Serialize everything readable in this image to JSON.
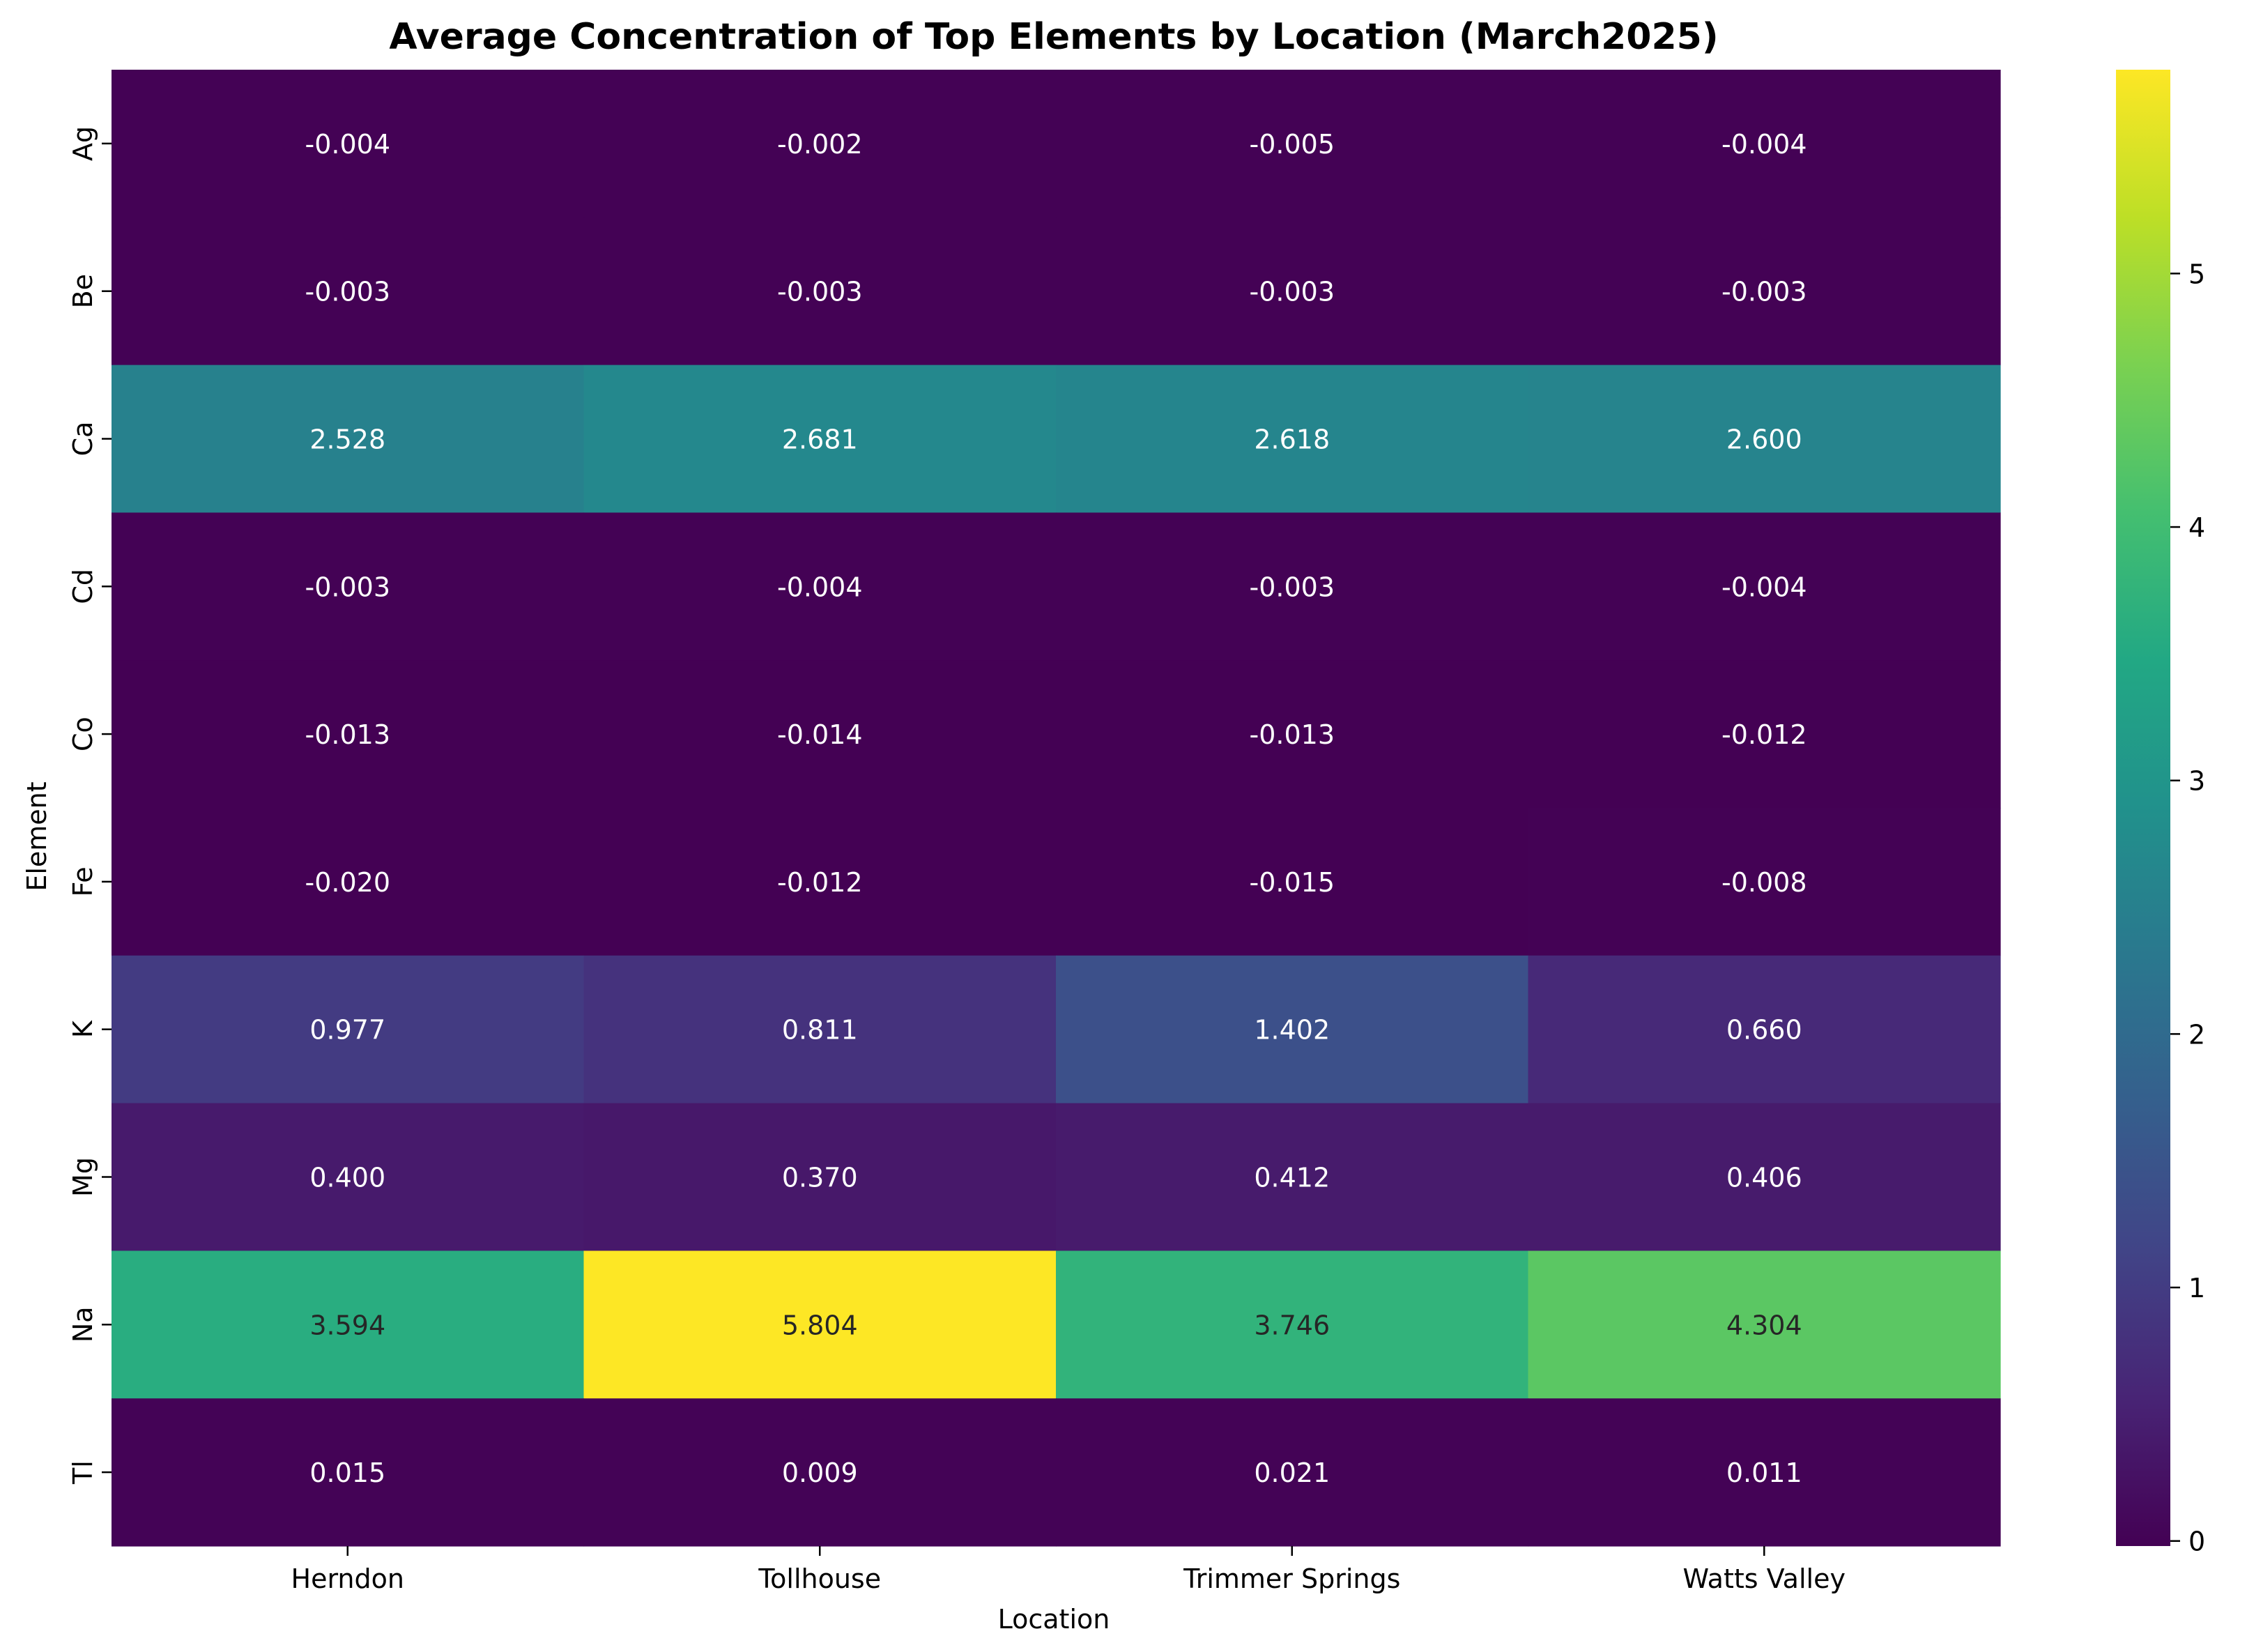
{
  "chart_data": {
    "type": "heatmap",
    "title": "Average Concentration of Top Elements by Location (March2025)",
    "xlabel": "Location",
    "ylabel": "Element",
    "x_categories": [
      "Herndon",
      "Tollhouse",
      "Trimmer Springs",
      "Watts Valley"
    ],
    "y_categories": [
      "Ag",
      "Be",
      "Ca",
      "Cd",
      "Co",
      "Fe",
      "K",
      "Mg",
      "Na",
      "Tl"
    ],
    "values": [
      [
        -0.004,
        -0.002,
        -0.005,
        -0.004
      ],
      [
        -0.003,
        -0.003,
        -0.003,
        -0.003
      ],
      [
        2.528,
        2.681,
        2.618,
        2.6
      ],
      [
        -0.003,
        -0.004,
        -0.003,
        -0.004
      ],
      [
        -0.013,
        -0.014,
        -0.013,
        -0.012
      ],
      [
        -0.02,
        -0.012,
        -0.015,
        -0.008
      ],
      [
        0.977,
        0.811,
        1.402,
        0.66
      ],
      [
        0.4,
        0.37,
        0.412,
        0.406
      ],
      [
        3.594,
        5.804,
        3.746,
        4.304
      ],
      [
        0.015,
        0.009,
        0.021,
        0.011
      ]
    ],
    "value_format_decimals": 3,
    "colormap": "viridis",
    "colorbar": {
      "vmin": -0.02,
      "vmax": 5.804,
      "ticks": [
        0,
        1,
        2,
        3,
        4,
        5
      ]
    },
    "grid": false,
    "colors": {
      "low": "#440154",
      "high": "#fde725",
      "annotation_light": "#ffffff",
      "annotation_dark": "#262626"
    }
  }
}
